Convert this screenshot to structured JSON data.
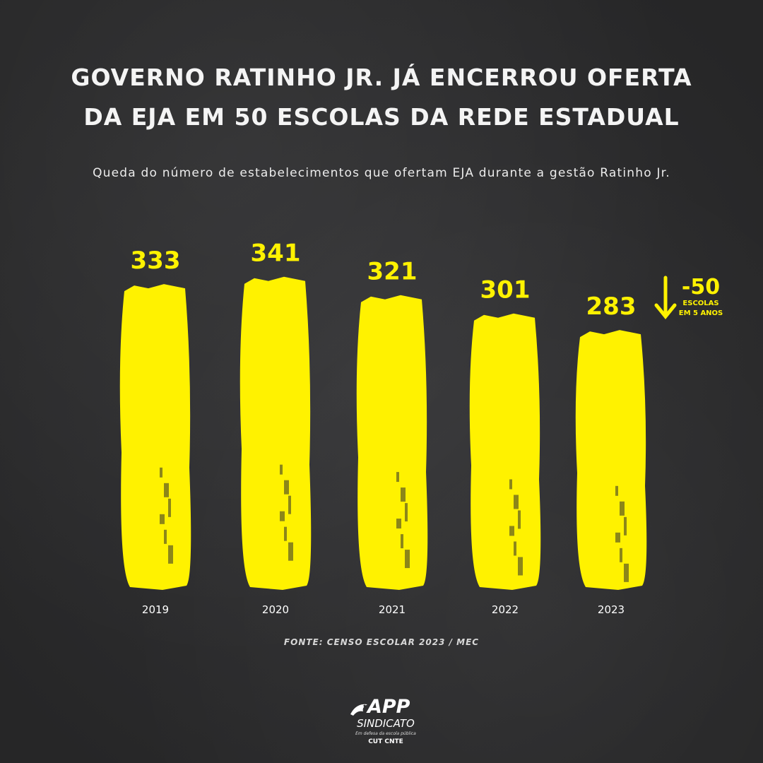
{
  "title": {
    "line1": "GOVERNO RATINHO JR. JÁ ENCERROU OFERTA",
    "line2": "DA EJA EM 50 ESCOLAS DA REDE ESTADUAL"
  },
  "subtitle": "Queda do número de estabelecimentos que ofertam EJA durante a gestão Ratinho Jr.",
  "source": "FONTE: CENSO ESCOLAR 2023 / MEC",
  "annotation": {
    "value": "-50",
    "line1": "ESCOLAS",
    "line2": "EM 5 ANOS"
  },
  "logo": {
    "name": "APP",
    "line2": "SINDICATO",
    "tagline": "Em defesa da escola pública",
    "affiliation": "CUT CNTE"
  },
  "colors": {
    "background": "#2d2d2e",
    "bar": "#fff200",
    "label": "#fff200",
    "text": "#ffffff"
  },
  "chart_data": {
    "type": "bar",
    "categories": [
      "2019",
      "2020",
      "2021",
      "2022",
      "2023"
    ],
    "values": [
      333,
      341,
      321,
      301,
      283
    ],
    "data_labels": [
      "333",
      "341",
      "321",
      "301",
      "283"
    ]
  }
}
